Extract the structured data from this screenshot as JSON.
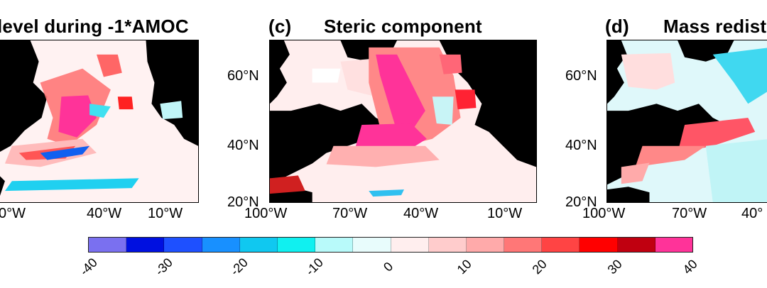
{
  "panels": [
    {
      "id": "b",
      "title_visible": "level during -1*AMOC"
    },
    {
      "id": "c",
      "letter": "(c)",
      "title": "Steric component"
    },
    {
      "id": "d",
      "letter": "(d)",
      "title": "Mass redist"
    }
  ],
  "lat_ticks": [
    "20°N",
    "40°N",
    "60°N"
  ],
  "lon_ticks_b": [
    "0°W",
    "40°W",
    "10°W"
  ],
  "lon_ticks_full": [
    "100°W",
    "70°W",
    "40°W",
    "10°W"
  ],
  "lon_ticks_d": [
    "100°W",
    "70°W",
    "40°"
  ],
  "colorbar": {
    "ticks": [
      "-40",
      "-30",
      "-20",
      "-10",
      "0",
      "10",
      "20",
      "30",
      "40"
    ],
    "colors": [
      "#7a70f0",
      "#0010e0",
      "#1e50ff",
      "#1890ff",
      "#10c8f0",
      "#10f0f0",
      "#b8fafa",
      "#e8fcfc",
      "#ffeeee",
      "#ffcccc",
      "#ffaaaa",
      "#ff7777",
      "#ff4444",
      "#ff0000",
      "#c00010",
      "#ff3399"
    ]
  }
}
